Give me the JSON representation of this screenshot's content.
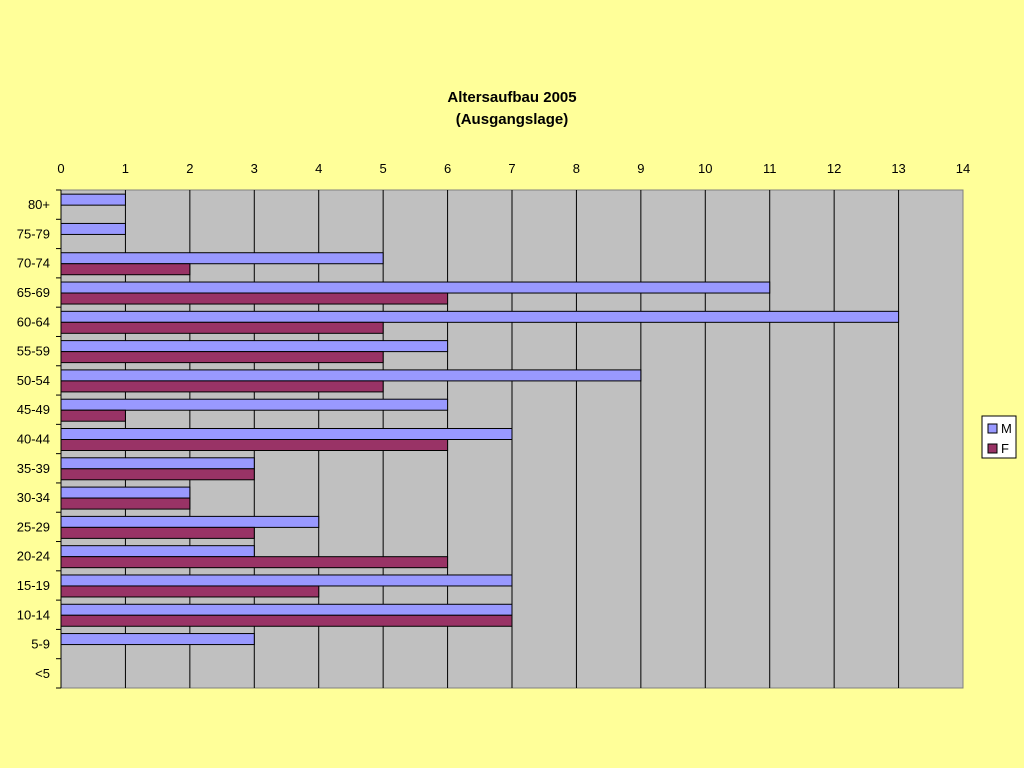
{
  "chart_data": {
    "type": "bar",
    "orientation": "horizontal",
    "title": "Altersaufbau 2005",
    "subtitle": "(Ausgangslage)",
    "xlabel": "",
    "ylabel": "",
    "xlim": [
      0,
      14
    ],
    "x_ticks": [
      "0",
      "1",
      "2",
      "3",
      "4",
      "5",
      "6",
      "7",
      "8",
      "9",
      "10",
      "11",
      "12",
      "13",
      "14"
    ],
    "x_axis_position": "top",
    "grid": true,
    "legend_position": "right",
    "categories": [
      "80+",
      "75-79",
      "70-74",
      "65-69",
      "60-64",
      "55-59",
      "50-54",
      "45-49",
      "40-44",
      "35-39",
      "30-34",
      "25-29",
      "20-24",
      "15-19",
      "10-14",
      "5-9",
      "<5"
    ],
    "series": [
      {
        "name": "M",
        "color": "#9999FF",
        "values": [
          1,
          1,
          5,
          11,
          13,
          6,
          9,
          6,
          7,
          3,
          2,
          4,
          3,
          7,
          7,
          3,
          0
        ]
      },
      {
        "name": "F",
        "color": "#993366",
        "values": [
          0,
          0,
          2,
          6,
          5,
          5,
          5,
          1,
          6,
          3,
          2,
          3,
          6,
          4,
          7,
          0,
          0
        ]
      }
    ]
  },
  "colors": {
    "page_background": "#FFFF99",
    "plot_background": "#C0C0C0"
  }
}
